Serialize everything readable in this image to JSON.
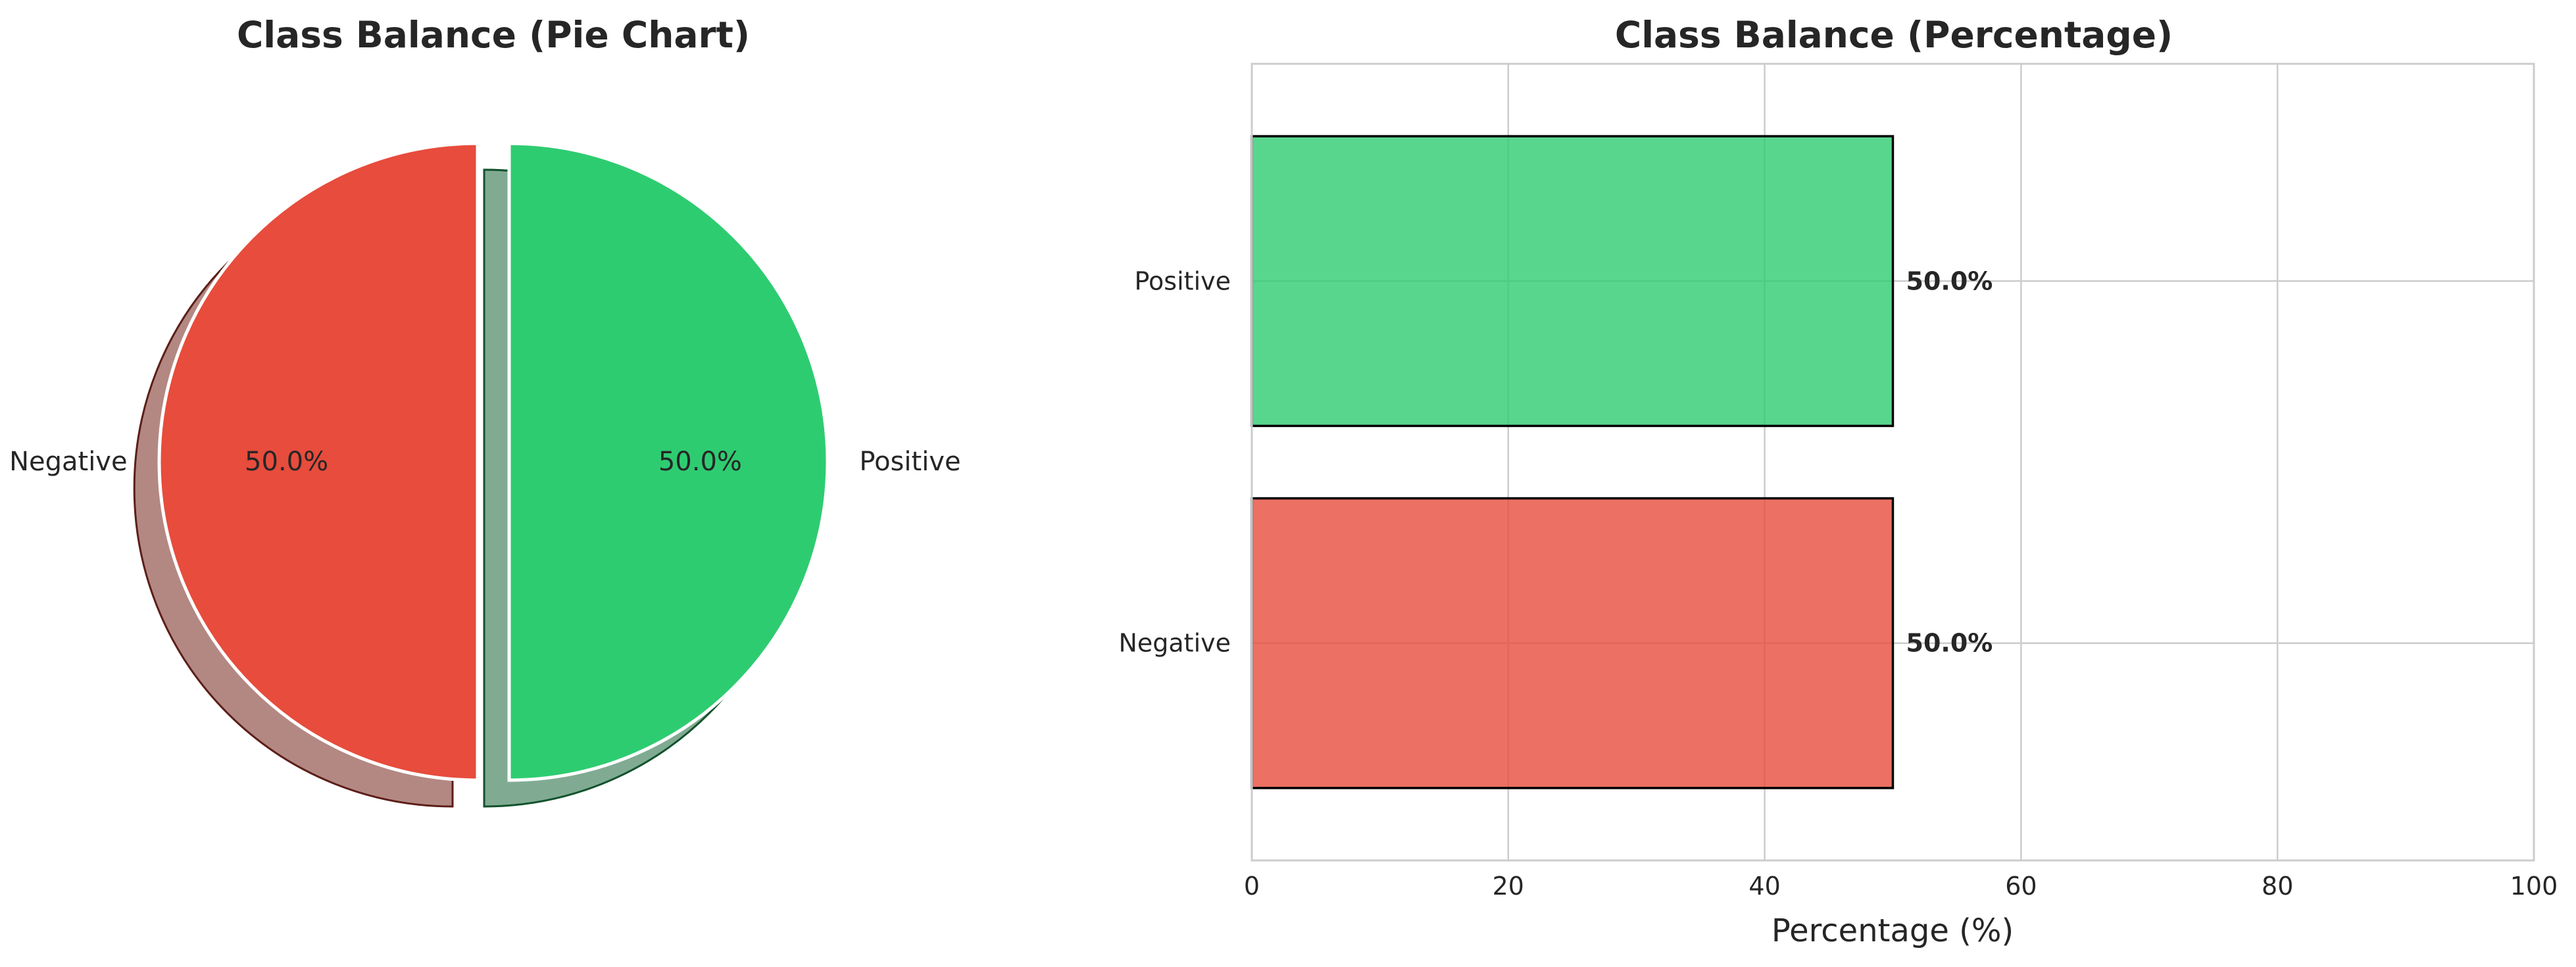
{
  "chart_data": [
    {
      "type": "pie",
      "title": "Class Balance (Pie Chart)",
      "labels": [
        "Negative",
        "Positive"
      ],
      "values": [
        50.0,
        50.0
      ],
      "value_labels": [
        "50.0%",
        "50.0%"
      ],
      "colors": [
        "#e74c3c",
        "#2ecc71"
      ],
      "shadow": true,
      "explode": true
    },
    {
      "type": "bar",
      "orientation": "horizontal",
      "title": "Class Balance (Percentage)",
      "categories": [
        "Negative",
        "Positive"
      ],
      "values": [
        50.0,
        50.0
      ],
      "value_labels": [
        "50.0%",
        "50.0%"
      ],
      "colors": [
        "#e74c3c",
        "#2ecc71"
      ],
      "xlabel": "Percentage (%)",
      "ylabel": "",
      "xlim": [
        0,
        100
      ],
      "xticks": [
        "0",
        "20",
        "40",
        "60",
        "80",
        "100"
      ],
      "grid": true
    }
  ]
}
